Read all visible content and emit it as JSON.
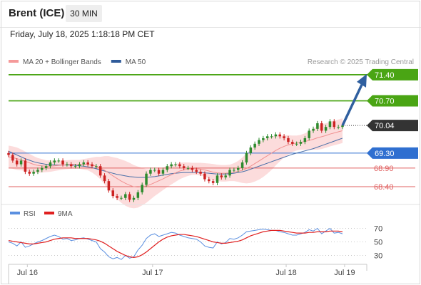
{
  "header": {
    "title": "Brent (ICE)",
    "timeframe_label": "30 MIN",
    "datetime": "Friday, July 18, 2025 1:18:18 PM CET"
  },
  "legend": {
    "main": [
      {
        "label": "MA 20 + Bollinger Bands",
        "color": "#f59a9a"
      },
      {
        "label": "MA 50",
        "color": "#2f5b9a"
      }
    ],
    "rsi": [
      {
        "label": "RSI",
        "color": "#5a8fe0"
      },
      {
        "label": "9MA",
        "color": "#e02020"
      }
    ],
    "copyright": "Research © 2025 Trading Central"
  },
  "colors": {
    "resistance": "#4aa514",
    "support": "#e06060",
    "pivot": "#2f6fd0",
    "last": "#333333",
    "arrow": "#2f5f9f",
    "up_candle": "#2e8b2e",
    "down_candle": "#cc2222",
    "bollinger": "#fbd6d6",
    "ma20": "#f09090",
    "ma50": "#4a6fa8"
  },
  "chart_data": [
    {
      "type": "line",
      "title": "Brent (ICE) 30 MIN",
      "ylim": [
        68.0,
        71.55
      ],
      "x_tick_labels": [
        "Jul 16",
        "Jul 17",
        "Jul 18",
        "Jul 19"
      ],
      "x_tick_positions": [
        4.5,
        34.5,
        66.5,
        80.5
      ],
      "levels": [
        {
          "value": 71.4,
          "label": "71.40",
          "kind": "resistance"
        },
        {
          "value": 70.7,
          "label": "70.70",
          "kind": "resistance"
        },
        {
          "value": 70.04,
          "label": "70.04",
          "kind": "last"
        },
        {
          "value": 69.3,
          "label": "69.30",
          "kind": "pivot"
        },
        {
          "value": 68.9,
          "label": "68.90",
          "kind": "support"
        },
        {
          "value": 68.4,
          "label": "68.40",
          "kind": "support"
        }
      ],
      "close": [
        69.25,
        69.1,
        69.0,
        69.1,
        68.8,
        68.75,
        68.8,
        68.85,
        68.9,
        68.95,
        69.05,
        69.1,
        69.1,
        69.0,
        69.0,
        68.95,
        68.95,
        69.0,
        69.05,
        69.0,
        68.95,
        68.95,
        68.7,
        68.55,
        68.3,
        68.15,
        68.1,
        68.1,
        68.2,
        68.05,
        68.1,
        68.25,
        68.45,
        68.75,
        68.85,
        68.85,
        68.75,
        68.85,
        68.95,
        69.0,
        69.0,
        68.95,
        68.9,
        68.9,
        68.85,
        68.8,
        68.75,
        68.6,
        68.55,
        68.5,
        68.7,
        68.65,
        68.7,
        68.85,
        68.85,
        68.9,
        69.05,
        69.3,
        69.45,
        69.55,
        69.65,
        69.7,
        69.75,
        69.75,
        69.8,
        69.75,
        69.7,
        69.6,
        69.55,
        69.55,
        69.6,
        69.7,
        69.9,
        69.95,
        70.1,
        69.9,
        70.0,
        70.15,
        70.0,
        70.0,
        70.04
      ],
      "open": [
        69.3,
        69.25,
        69.1,
        69.0,
        69.1,
        68.8,
        68.75,
        68.8,
        68.85,
        68.9,
        68.95,
        69.05,
        69.1,
        69.1,
        69.0,
        69.0,
        68.95,
        68.95,
        69.0,
        69.05,
        69.0,
        68.95,
        68.95,
        68.7,
        68.55,
        68.3,
        68.15,
        68.1,
        68.1,
        68.2,
        68.05,
        68.1,
        68.25,
        68.45,
        68.75,
        68.85,
        68.85,
        68.75,
        68.85,
        68.95,
        69.0,
        69.0,
        68.95,
        68.9,
        68.9,
        68.85,
        68.8,
        68.75,
        68.6,
        68.55,
        68.5,
        68.7,
        68.65,
        68.7,
        68.85,
        68.85,
        68.9,
        69.05,
        69.3,
        69.45,
        69.55,
        69.65,
        69.7,
        69.75,
        69.75,
        69.8,
        69.75,
        69.7,
        69.6,
        69.55,
        69.55,
        69.6,
        69.7,
        69.9,
        69.95,
        70.1,
        69.9,
        70.0,
        70.15,
        70.0,
        70.0
      ],
      "ma20": [
        69.2,
        69.18,
        69.15,
        69.12,
        69.08,
        69.04,
        69.0,
        68.97,
        68.96,
        68.95,
        68.95,
        68.96,
        68.97,
        68.98,
        68.99,
        69.0,
        69.0,
        69.0,
        69.0,
        69.0,
        68.98,
        68.95,
        68.9,
        68.84,
        68.77,
        68.69,
        68.62,
        68.55,
        68.49,
        68.44,
        68.4,
        68.39,
        68.4,
        68.42,
        68.46,
        68.51,
        68.56,
        68.61,
        68.67,
        68.72,
        68.77,
        68.82,
        68.85,
        68.87,
        68.88,
        68.88,
        68.87,
        68.85,
        68.82,
        68.79,
        68.77,
        68.76,
        68.76,
        68.77,
        68.79,
        68.81,
        68.84,
        68.89,
        68.95,
        69.02,
        69.09,
        69.16,
        69.23,
        69.3,
        69.37,
        69.43,
        69.48,
        69.52,
        69.55,
        69.57,
        69.59,
        69.61,
        69.64,
        69.67,
        69.71,
        69.74,
        69.77,
        69.81,
        69.84,
        69.87,
        69.9
      ],
      "ma50": [
        69.35,
        69.3,
        69.25,
        69.2,
        69.15,
        69.11,
        69.07,
        69.04,
        69.02,
        69.0,
        68.99,
        68.98,
        68.98,
        68.98,
        68.98,
        68.98,
        68.97,
        68.96,
        68.95,
        68.93,
        68.91,
        68.88,
        68.85,
        68.82,
        68.79,
        68.76,
        68.73,
        68.71,
        68.69,
        68.67,
        68.66,
        68.65,
        68.65,
        68.65,
        68.66,
        68.67,
        68.69,
        68.71,
        68.73,
        68.75,
        68.76,
        68.77,
        68.78,
        68.78,
        68.78,
        68.78,
        68.78,
        68.77,
        68.76,
        68.75,
        68.74,
        68.74,
        68.74,
        68.75,
        68.76,
        68.78,
        68.8,
        68.83,
        68.87,
        68.91,
        68.95,
        68.99,
        69.03,
        69.07,
        69.11,
        69.15,
        69.19,
        69.23,
        69.27,
        69.3,
        69.33,
        69.36,
        69.39,
        69.42,
        69.46,
        69.5,
        69.54,
        69.58,
        69.62,
        69.66,
        69.7
      ],
      "bb_width": [
        0.3,
        0.3,
        0.3,
        0.28,
        0.26,
        0.24,
        0.22,
        0.2,
        0.18,
        0.16,
        0.15,
        0.14,
        0.13,
        0.12,
        0.12,
        0.12,
        0.12,
        0.12,
        0.14,
        0.16,
        0.2,
        0.25,
        0.3,
        0.38,
        0.45,
        0.5,
        0.55,
        0.58,
        0.6,
        0.6,
        0.58,
        0.55,
        0.5,
        0.45,
        0.4,
        0.36,
        0.33,
        0.3,
        0.28,
        0.26,
        0.24,
        0.22,
        0.2,
        0.18,
        0.16,
        0.16,
        0.17,
        0.18,
        0.2,
        0.22,
        0.22,
        0.22,
        0.22,
        0.22,
        0.24,
        0.28,
        0.34,
        0.4,
        0.45,
        0.48,
        0.5,
        0.5,
        0.48,
        0.45,
        0.4,
        0.35,
        0.3,
        0.26,
        0.22,
        0.2,
        0.2,
        0.22,
        0.25,
        0.28,
        0.32,
        0.33,
        0.33,
        0.33,
        0.33,
        0.33,
        0.33
      ]
    },
    {
      "type": "line",
      "title": "RSI",
      "ylim": [
        20,
        80
      ],
      "y_tick_labels": [
        "70",
        "50",
        "30"
      ],
      "rsi": [
        50,
        48,
        44,
        50,
        42,
        44,
        47,
        50,
        52,
        55,
        58,
        60,
        58,
        54,
        55,
        52,
        53,
        55,
        56,
        54,
        52,
        50,
        40,
        35,
        28,
        25,
        27,
        24,
        30,
        26,
        28,
        38,
        45,
        55,
        60,
        62,
        58,
        60,
        62,
        64,
        63,
        60,
        58,
        56,
        55,
        54,
        50,
        44,
        42,
        41,
        50,
        47,
        49,
        55,
        54,
        56,
        60,
        65,
        66,
        67,
        68,
        69,
        68,
        67,
        67,
        65,
        64,
        62,
        60,
        60,
        62,
        64,
        68,
        66,
        70,
        62,
        66,
        70,
        63,
        64,
        62
      ],
      "ma9": [
        52,
        51,
        50,
        49,
        48,
        47,
        47,
        48,
        49,
        50,
        52,
        54,
        55,
        56,
        56,
        56,
        55,
        55,
        55,
        55,
        54,
        53,
        51,
        48,
        44,
        40,
        36,
        33,
        30,
        28,
        27,
        28,
        31,
        35,
        40,
        45,
        50,
        54,
        57,
        59,
        60,
        61,
        61,
        60,
        59,
        58,
        56,
        54,
        52,
        50,
        49,
        48,
        48,
        49,
        50,
        51,
        53,
        56,
        59,
        61,
        63,
        65,
        66,
        67,
        67,
        67,
        66,
        65,
        64,
        63,
        63,
        63,
        64,
        64,
        65,
        65,
        65,
        66,
        66,
        66,
        65
      ]
    }
  ]
}
